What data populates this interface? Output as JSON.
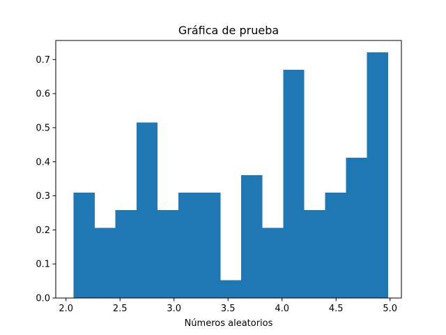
{
  "chart_data": {
    "type": "bar",
    "title": "Gráfica de prueba",
    "xlabel": "Números aleatorios",
    "ylabel": "",
    "xlim": [
      1.905,
      5.105
    ],
    "ylim": [
      0,
      0.756
    ],
    "xticks": [
      "2.0",
      "2.5",
      "3.0",
      "3.5",
      "4.0",
      "4.5",
      "5.0"
    ],
    "yticks": [
      "0.0",
      "0.1",
      "0.2",
      "0.3",
      "0.4",
      "0.5",
      "0.6",
      "0.7"
    ],
    "grid": false,
    "bin_edges": [
      2.07,
      2.167,
      2.264,
      2.361,
      2.458,
      2.555,
      2.652,
      2.749,
      2.846,
      2.943,
      3.04,
      3.137,
      3.234,
      3.331,
      3.428,
      3.525,
      3.622,
      3.719,
      3.816,
      3.913,
      4.01,
      4.107,
      4.204,
      4.301,
      4.398,
      4.495,
      4.592,
      4.689,
      4.786,
      4.883,
      4.98
    ],
    "values": [
      0.309,
      0.309,
      0.206,
      0.206,
      0.258,
      0.258,
      0.515,
      0.515,
      0.258,
      0.258,
      0.309,
      0.309,
      0.309,
      0.309,
      0.052,
      0.052,
      0.361,
      0.361,
      0.206,
      0.206,
      0.67,
      0.67,
      0.258,
      0.258,
      0.309,
      0.309,
      0.412,
      0.412,
      0.721,
      0.721
    ],
    "bar_color": "#1f77b4"
  }
}
